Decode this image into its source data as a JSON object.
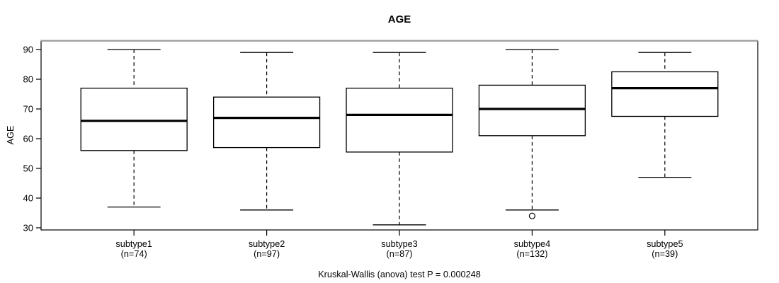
{
  "chart_data": {
    "type": "boxplot",
    "title": "AGE",
    "ylabel": "AGE",
    "xlabel": "",
    "footer": "Kruskal-Wallis (anova) test P = 0.000248",
    "grid": false,
    "legend_position": "none",
    "ylim": [
      29.1,
      92.7
    ],
    "yticks": [
      30,
      40,
      50,
      60,
      70,
      80,
      90
    ],
    "categories": [
      "subtype1",
      "subtype2",
      "subtype3",
      "subtype4",
      "subtype5"
    ],
    "category_counts": [
      "(n=74)",
      "(n=97)",
      "(n=87)",
      "(n=132)",
      "(n=39)"
    ],
    "series": [
      {
        "category": "subtype1",
        "n": 74,
        "whisker_low": 37,
        "q1": 56,
        "median": 66,
        "q3": 77,
        "whisker_high": 90,
        "outliers": []
      },
      {
        "category": "subtype2",
        "n": 97,
        "whisker_low": 36,
        "q1": 57,
        "median": 67,
        "q3": 74,
        "whisker_high": 89,
        "outliers": []
      },
      {
        "category": "subtype3",
        "n": 87,
        "whisker_low": 31,
        "q1": 55.5,
        "median": 68,
        "q3": 77,
        "whisker_high": 89,
        "outliers": []
      },
      {
        "category": "subtype4",
        "n": 132,
        "whisker_low": 36,
        "q1": 61,
        "median": 70,
        "q3": 78,
        "whisker_high": 90,
        "outliers": [
          34
        ]
      },
      {
        "category": "subtype5",
        "n": 39,
        "whisker_low": 47,
        "q1": 67.5,
        "median": 77,
        "q3": 82.5,
        "whisker_high": 89,
        "outliers": []
      }
    ],
    "colors": {
      "stroke": "#000000",
      "box_fill": "#ffffff",
      "background": "#ffffff",
      "border_top": "#9a9a9a"
    }
  }
}
